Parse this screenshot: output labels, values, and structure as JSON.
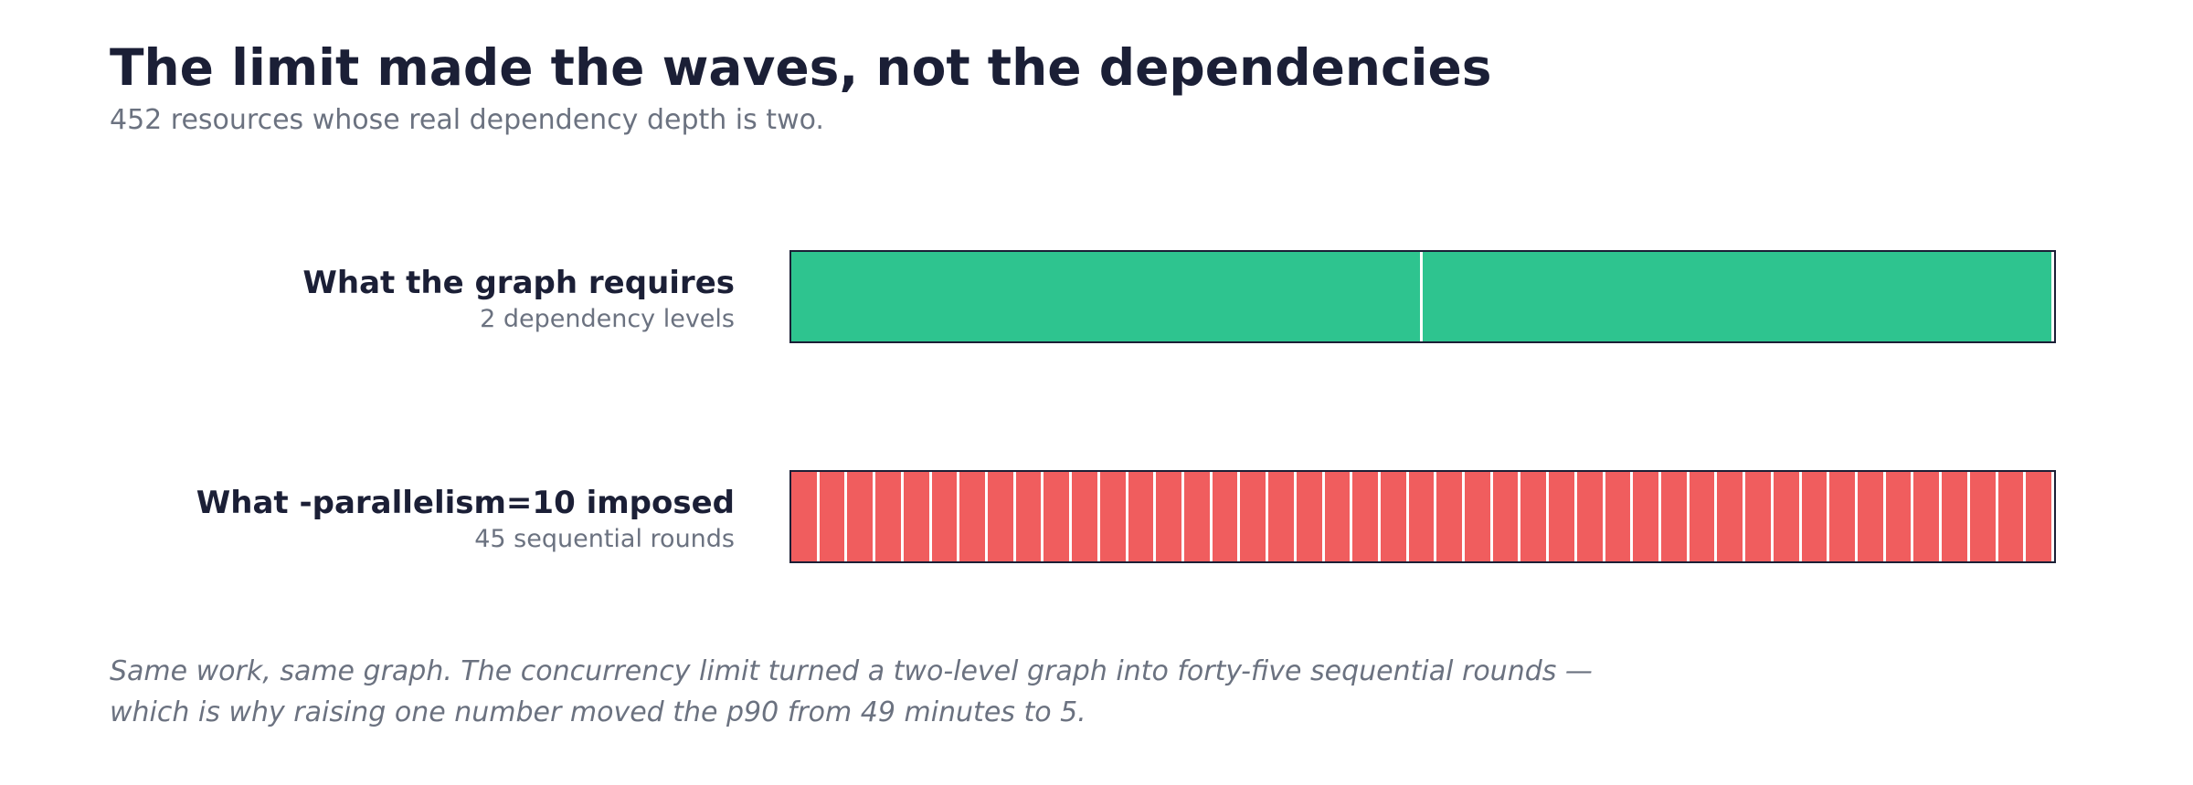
{
  "header": {
    "title": "The limit made the waves, not the dependencies",
    "subtitle": "452 resources whose real dependency depth is two."
  },
  "chart_data": {
    "type": "bar",
    "title": "The limit made the waves, not the dependencies",
    "subtitle": "452 resources whose real dependency depth is two.",
    "rows": [
      {
        "label": "What the graph requires",
        "caption": "2 dependency levels",
        "segments": 2,
        "color": "#2ec48f"
      },
      {
        "label": "What -parallelism=10 imposed",
        "caption": "45 sequential rounds",
        "segments": 45,
        "color": "#f05d5e"
      }
    ],
    "note": "Same work, same graph. The concurrency limit turned a two-level graph into forty-five sequential rounds — which is why raising one number moved the p90 from 49 minutes to 5."
  },
  "colors": {
    "heading": "#1b1f36",
    "muted": "#6b7280",
    "green": "#2ec48f",
    "red": "#f05d5e",
    "divider": "#ffffff"
  }
}
